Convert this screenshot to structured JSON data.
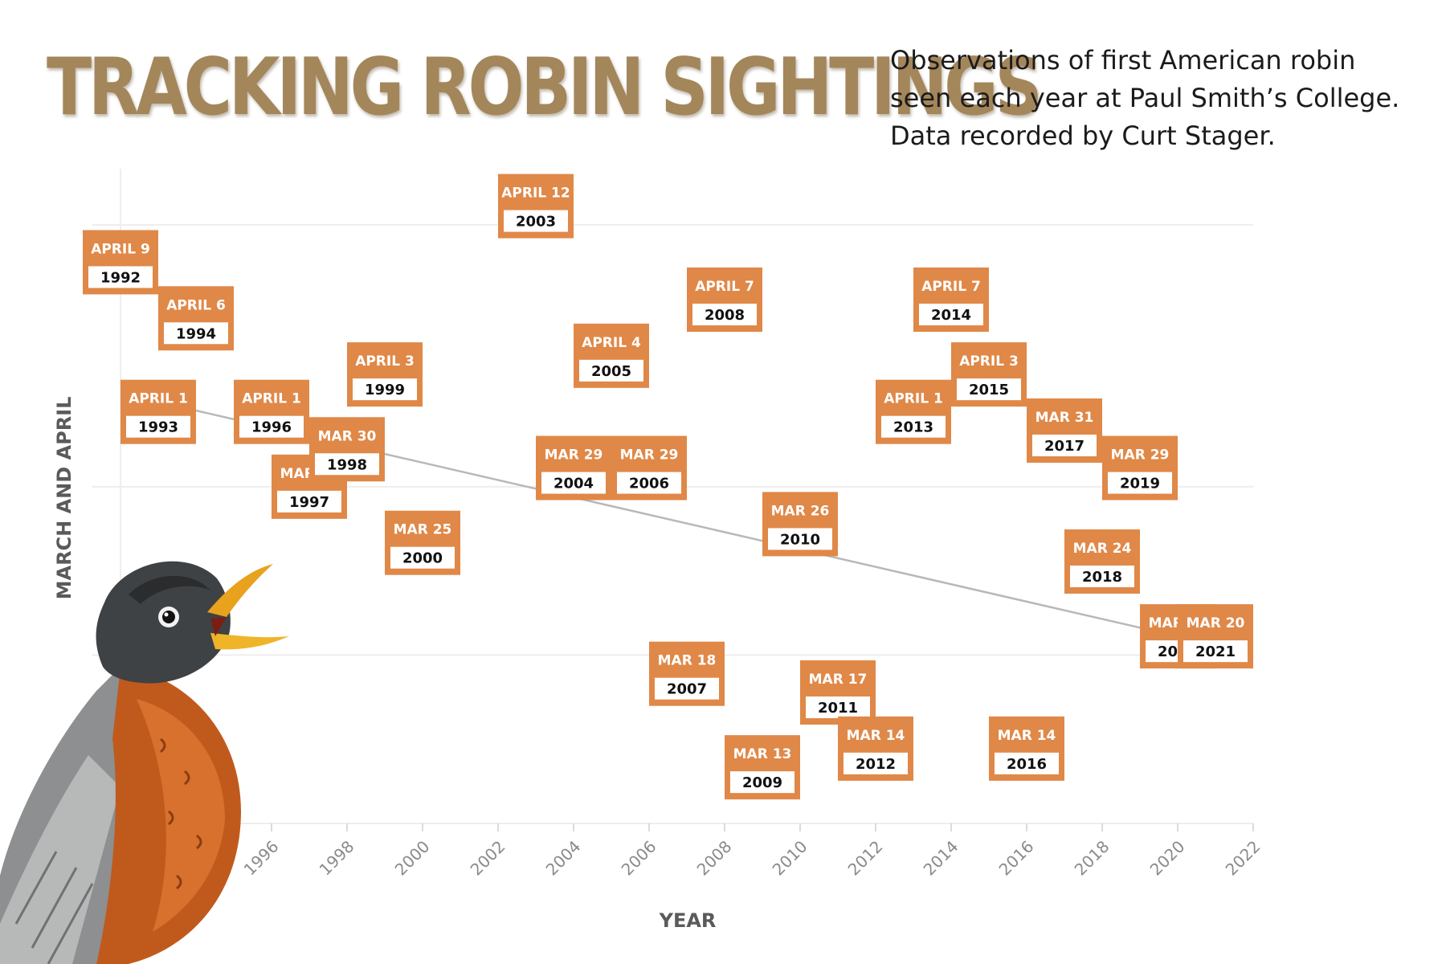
{
  "header": {
    "title": "TRACKING ROBIN SIGHTINGS",
    "subtitle_lines": [
      "Observations of first American robin",
      "seen each year at Paul Smith’s College.",
      "Data recorded by Curt Stager."
    ]
  },
  "colors": {
    "title": "#a4865b",
    "label_box": "#e08848",
    "trend": "#b8b8b8",
    "grid": "#eeeeee"
  },
  "illustration": {
    "icon": "american-robin-icon"
  },
  "chart_data": {
    "type": "scatter",
    "xlabel": "YEAR",
    "ylabel": "MARCH AND APRIL",
    "x_ticks": [
      1996,
      1998,
      2000,
      2002,
      2004,
      2006,
      2008,
      2010,
      2012,
      2014,
      2016,
      2018,
      2020,
      2022
    ],
    "xlim": [
      1992,
      2022
    ],
    "ylim": [
      "MAR 10",
      "APRIL 14"
    ],
    "grid": true,
    "trendline": {
      "start": {
        "year": 1992,
        "date": "APRIL 2"
      },
      "end": {
        "year": 2020,
        "date": "MAR 20"
      }
    },
    "points": [
      {
        "year": "1992",
        "label": "APRIL 9",
        "day_of_year": 99
      },
      {
        "year": "1993",
        "label": "APRIL 1",
        "day_of_year": 91
      },
      {
        "year": "1994",
        "label": "APRIL 6",
        "day_of_year": 96
      },
      {
        "year": "1996",
        "label": "APRIL 1",
        "day_of_year": 91
      },
      {
        "year": "1997",
        "label": "MAR 28",
        "day_of_year": 87
      },
      {
        "year": "1998",
        "label": "MAR 30",
        "day_of_year": 89
      },
      {
        "year": "1999",
        "label": "APRIL 3",
        "day_of_year": 93
      },
      {
        "year": "2000",
        "label": "MAR 25",
        "day_of_year": 84
      },
      {
        "year": "2003",
        "label": "APRIL 12",
        "day_of_year": 102
      },
      {
        "year": "2004",
        "label": "MAR 29",
        "day_of_year": 88
      },
      {
        "year": "2005",
        "label": "APRIL 4",
        "day_of_year": 94
      },
      {
        "year": "2006",
        "label": "MAR 29",
        "day_of_year": 88
      },
      {
        "year": "2007",
        "label": "MAR 18",
        "day_of_year": 77
      },
      {
        "year": "2008",
        "label": "APRIL 7",
        "day_of_year": 97
      },
      {
        "year": "2009",
        "label": "MAR 13",
        "day_of_year": 72
      },
      {
        "year": "2010",
        "label": "MAR 26",
        "day_of_year": 85
      },
      {
        "year": "2011",
        "label": "MAR 17",
        "day_of_year": 76
      },
      {
        "year": "2012",
        "label": "MAR 14",
        "day_of_year": 73
      },
      {
        "year": "2013",
        "label": "APRIL 1",
        "day_of_year": 91
      },
      {
        "year": "2014",
        "label": "APRIL 7",
        "day_of_year": 97
      },
      {
        "year": "2015",
        "label": "APRIL 3",
        "day_of_year": 93
      },
      {
        "year": "2016",
        "label": "MAR 14",
        "day_of_year": 73
      },
      {
        "year": "2017",
        "label": "MAR 31",
        "day_of_year": 90
      },
      {
        "year": "2018",
        "label": "MAR 24",
        "day_of_year": 83
      },
      {
        "year": "2019",
        "label": "MAR 29",
        "day_of_year": 88
      },
      {
        "year": "2020",
        "label": "MAR 20",
        "day_of_year": 79
      },
      {
        "year": "2021",
        "label": "MAR 20",
        "day_of_year": 79
      }
    ]
  }
}
